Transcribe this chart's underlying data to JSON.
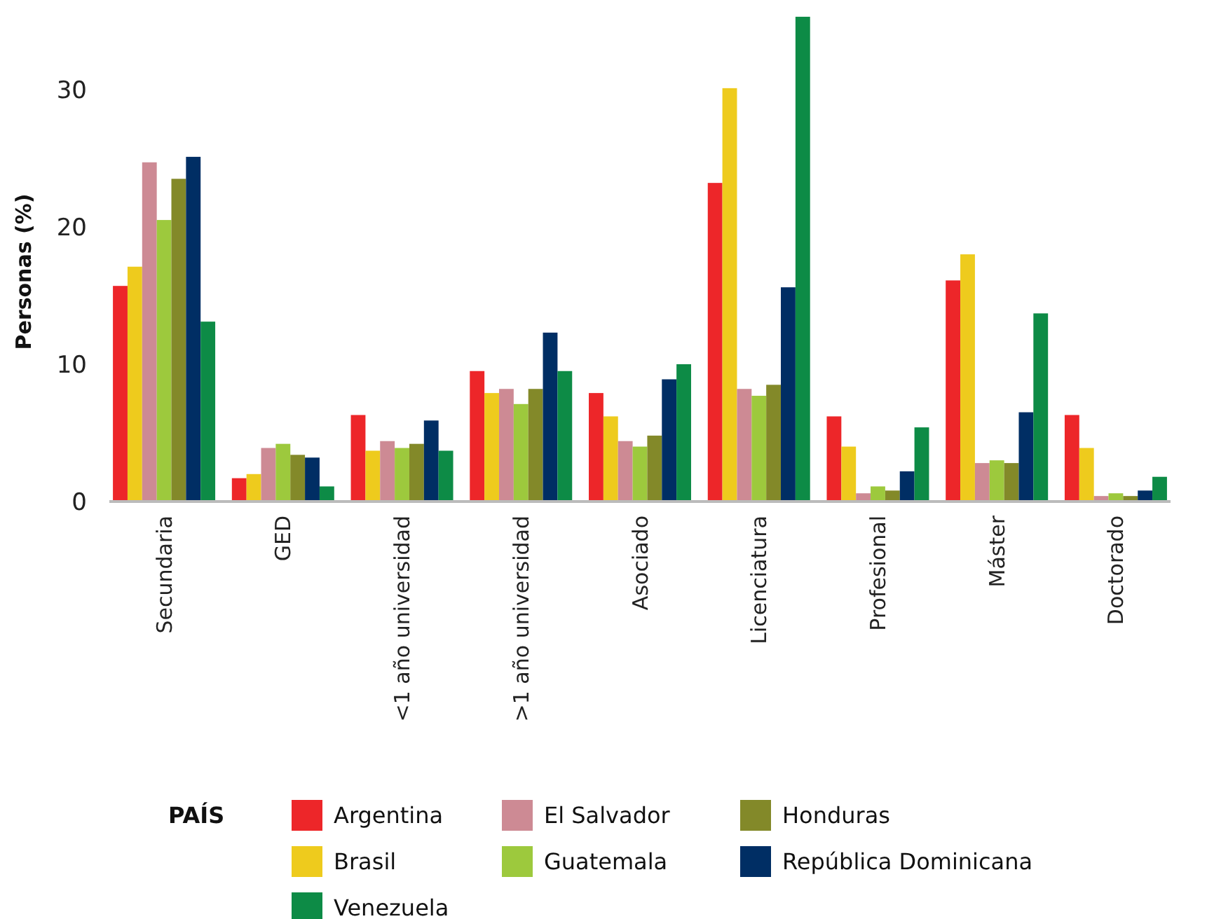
{
  "chart_data": {
    "type": "bar",
    "ylabel": "Personas (%)",
    "legend_title": "PAÍS",
    "legend": "bottom",
    "grid": false,
    "categories": [
      "Secundaria",
      "GED",
      "<1 año universidad",
      ">1 año universidad",
      "Asociado",
      "Licenciatura",
      "Profesional",
      "Máster",
      "Doctorado"
    ],
    "ylim": [
      0,
      35.5
    ],
    "yticks": [
      0,
      10,
      20,
      30
    ],
    "series": [
      {
        "name": "Argentina",
        "color": "#ed2629",
        "values": [
          15.7,
          1.7,
          6.3,
          9.5,
          7.9,
          23.2,
          6.2,
          16.1,
          6.3
        ]
      },
      {
        "name": "Brasil",
        "color": "#eecb1d",
        "values": [
          17.1,
          2.0,
          3.7,
          7.9,
          6.2,
          30.1,
          4.0,
          18.0,
          3.9
        ]
      },
      {
        "name": "El Salvador",
        "color": "#cd8a94",
        "values": [
          24.7,
          3.9,
          4.4,
          8.2,
          4.4,
          8.2,
          0.6,
          2.8,
          0.4
        ]
      },
      {
        "name": "Guatemala",
        "color": "#9dc93d",
        "values": [
          20.5,
          4.2,
          3.9,
          7.1,
          4.0,
          7.7,
          1.1,
          3.0,
          0.6
        ]
      },
      {
        "name": "Honduras",
        "color": "#838929",
        "values": [
          23.5,
          3.4,
          4.2,
          8.2,
          4.8,
          8.5,
          0.8,
          2.8,
          0.4
        ]
      },
      {
        "name": "República Dominicana",
        "color": "#002e64",
        "values": [
          25.1,
          3.2,
          5.9,
          12.3,
          8.9,
          15.6,
          2.2,
          6.5,
          0.8
        ]
      },
      {
        "name": "Venezuela",
        "color": "#0d8b46",
        "values": [
          13.1,
          1.1,
          3.7,
          9.5,
          10.0,
          35.3,
          5.4,
          13.7,
          1.8
        ]
      }
    ]
  }
}
